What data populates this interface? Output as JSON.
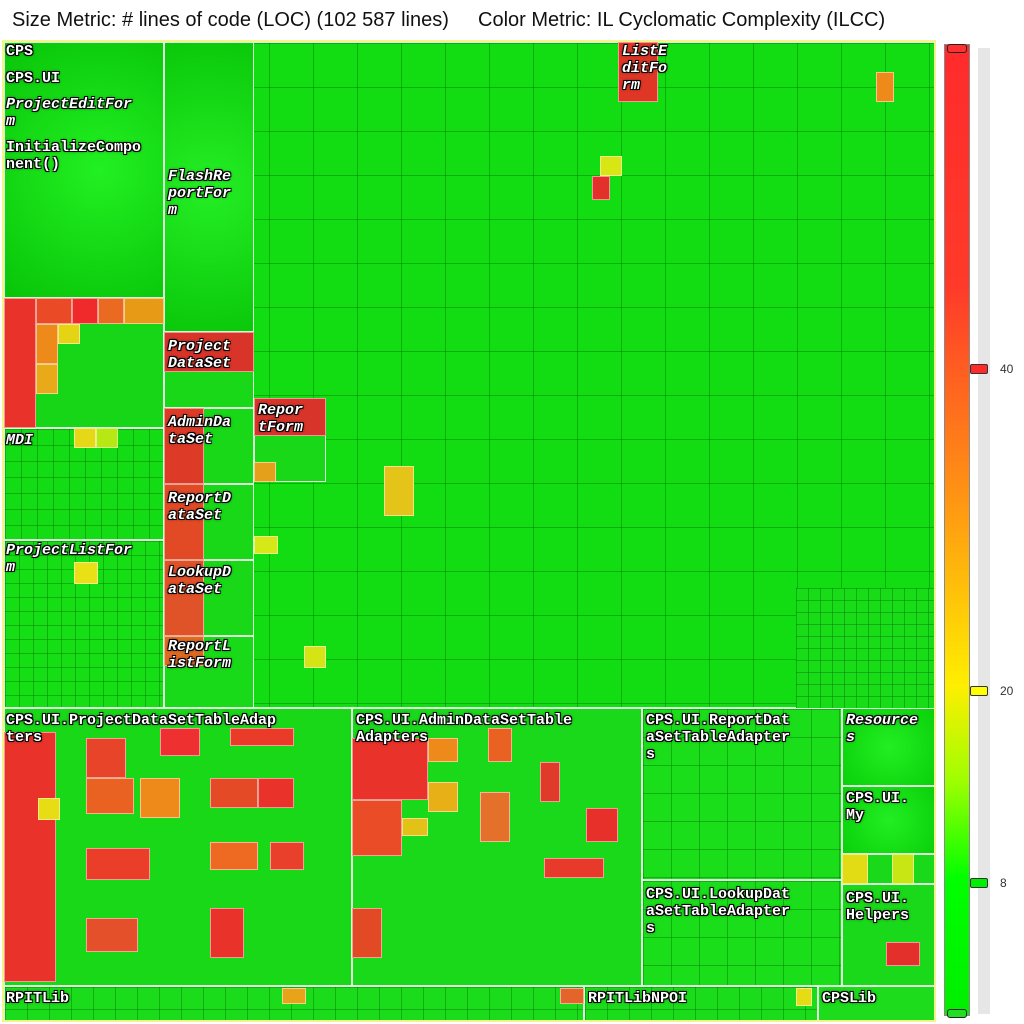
{
  "header": {
    "size_metric": "Size Metric: # lines of code (LOC) (102 587 lines)",
    "color_metric": "Color Metric: IL Cyclomatic Complexity (ILCC)"
  },
  "treemap": {
    "labels": {
      "cps": "CPS",
      "cps_ui": "CPS.UI",
      "project_edit_form": "ProjectEditFor\nm",
      "initialize_component": "InitializeCompo\nnent()",
      "flash_report_form": "FlashRe\nportFor\nm",
      "project_dataset": "Project\nDataSet",
      "admin_dataset": "AdminDa\ntaSet",
      "report_dataset": "ReportD\nataSet",
      "lookup_dataset": "LookupD\nataSet",
      "report_list_form": "ReportL\nistForm",
      "report_form": "Repor\ntForm",
      "mdi": "MDI",
      "project_list_form": "ProjectListFor\nm",
      "list_edit_form": "ListE\nditFo\nrm",
      "project_dataset_table_adapters": "CPS.UI.ProjectDataSetTableAdap\nters",
      "admin_dataset_table_adapters": "CPS.UI.AdminDataSetTable\nAdapters",
      "report_dataset_table_adapters": "CPS.UI.ReportDat\naSetTableAdapter\ns",
      "lookup_dataset_table_adapters": "CPS.UI.LookupDat\naSetTableAdapter\ns",
      "resources": "Resource\ns",
      "cps_ui_my": "CPS.UI.\nMy",
      "cps_ui_helpers": "CPS.UI.\nHelpers",
      "rpitlib": "RPITLib",
      "rpitlib_npoi": "RPITLibNPOI",
      "cpslib": "CPSLib"
    }
  },
  "scale": {
    "ticks": [
      "40",
      "20",
      "8"
    ],
    "colors": {
      "high": "#ff2b2b",
      "mid": "#ffee00",
      "low": "#00ee00"
    }
  }
}
